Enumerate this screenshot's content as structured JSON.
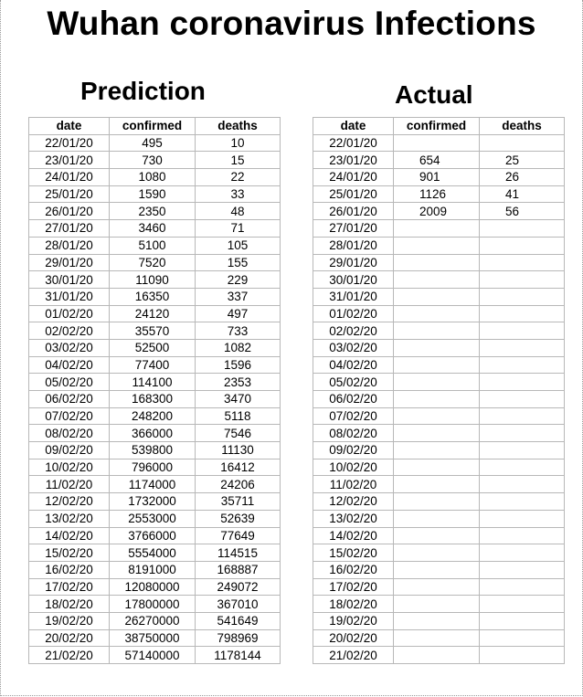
{
  "title": "Wuhan coronavirus Infections",
  "prediction": {
    "heading": "Prediction",
    "columns": [
      "date",
      "confirmed",
      "deaths"
    ],
    "rows": [
      [
        "22/01/20",
        "495",
        "10"
      ],
      [
        "23/01/20",
        "730",
        "15"
      ],
      [
        "24/01/20",
        "1080",
        "22"
      ],
      [
        "25/01/20",
        "1590",
        "33"
      ],
      [
        "26/01/20",
        "2350",
        "48"
      ],
      [
        "27/01/20",
        "3460",
        "71"
      ],
      [
        "28/01/20",
        "5100",
        "105"
      ],
      [
        "29/01/20",
        "7520",
        "155"
      ],
      [
        "30/01/20",
        "11090",
        "229"
      ],
      [
        "31/01/20",
        "16350",
        "337"
      ],
      [
        "01/02/20",
        "24120",
        "497"
      ],
      [
        "02/02/20",
        "35570",
        "733"
      ],
      [
        "03/02/20",
        "52500",
        "1082"
      ],
      [
        "04/02/20",
        "77400",
        "1596"
      ],
      [
        "05/02/20",
        "114100",
        "2353"
      ],
      [
        "06/02/20",
        "168300",
        "3470"
      ],
      [
        "07/02/20",
        "248200",
        "5118"
      ],
      [
        "08/02/20",
        "366000",
        "7546"
      ],
      [
        "09/02/20",
        "539800",
        "11130"
      ],
      [
        "10/02/20",
        "796000",
        "16412"
      ],
      [
        "11/02/20",
        "1174000",
        "24206"
      ],
      [
        "12/02/20",
        "1732000",
        "35711"
      ],
      [
        "13/02/20",
        "2553000",
        "52639"
      ],
      [
        "14/02/20",
        "3766000",
        "77649"
      ],
      [
        "15/02/20",
        "5554000",
        "114515"
      ],
      [
        "16/02/20",
        "8191000",
        "168887"
      ],
      [
        "17/02/20",
        "12080000",
        "249072"
      ],
      [
        "18/02/20",
        "17800000",
        "367010"
      ],
      [
        "19/02/20",
        "26270000",
        "541649"
      ],
      [
        "20/02/20",
        "38750000",
        "798969"
      ],
      [
        "21/02/20",
        "57140000",
        "1178144"
      ]
    ]
  },
  "actual": {
    "heading": "Actual",
    "columns": [
      "date",
      "confirmed",
      "deaths"
    ],
    "rows": [
      [
        "22/01/20",
        "",
        ""
      ],
      [
        "23/01/20",
        "654",
        "25"
      ],
      [
        "24/01/20",
        "901",
        "26"
      ],
      [
        "25/01/20",
        "1126",
        "41"
      ],
      [
        "26/01/20",
        "2009",
        "56"
      ],
      [
        "27/01/20",
        "",
        ""
      ],
      [
        "28/01/20",
        "",
        ""
      ],
      [
        "29/01/20",
        "",
        ""
      ],
      [
        "30/01/20",
        "",
        ""
      ],
      [
        "31/01/20",
        "",
        ""
      ],
      [
        "01/02/20",
        "",
        ""
      ],
      [
        "02/02/20",
        "",
        ""
      ],
      [
        "03/02/20",
        "",
        ""
      ],
      [
        "04/02/20",
        "",
        ""
      ],
      [
        "05/02/20",
        "",
        ""
      ],
      [
        "06/02/20",
        "",
        ""
      ],
      [
        "07/02/20",
        "",
        ""
      ],
      [
        "08/02/20",
        "",
        ""
      ],
      [
        "09/02/20",
        "",
        ""
      ],
      [
        "10/02/20",
        "",
        ""
      ],
      [
        "11/02/20",
        "",
        ""
      ],
      [
        "12/02/20",
        "",
        ""
      ],
      [
        "13/02/20",
        "",
        ""
      ],
      [
        "14/02/20",
        "",
        ""
      ],
      [
        "15/02/20",
        "",
        ""
      ],
      [
        "16/02/20",
        "",
        ""
      ],
      [
        "17/02/20",
        "",
        ""
      ],
      [
        "18/02/20",
        "",
        ""
      ],
      [
        "19/02/20",
        "",
        ""
      ],
      [
        "20/02/20",
        "",
        ""
      ],
      [
        "21/02/20",
        "",
        ""
      ]
    ]
  }
}
